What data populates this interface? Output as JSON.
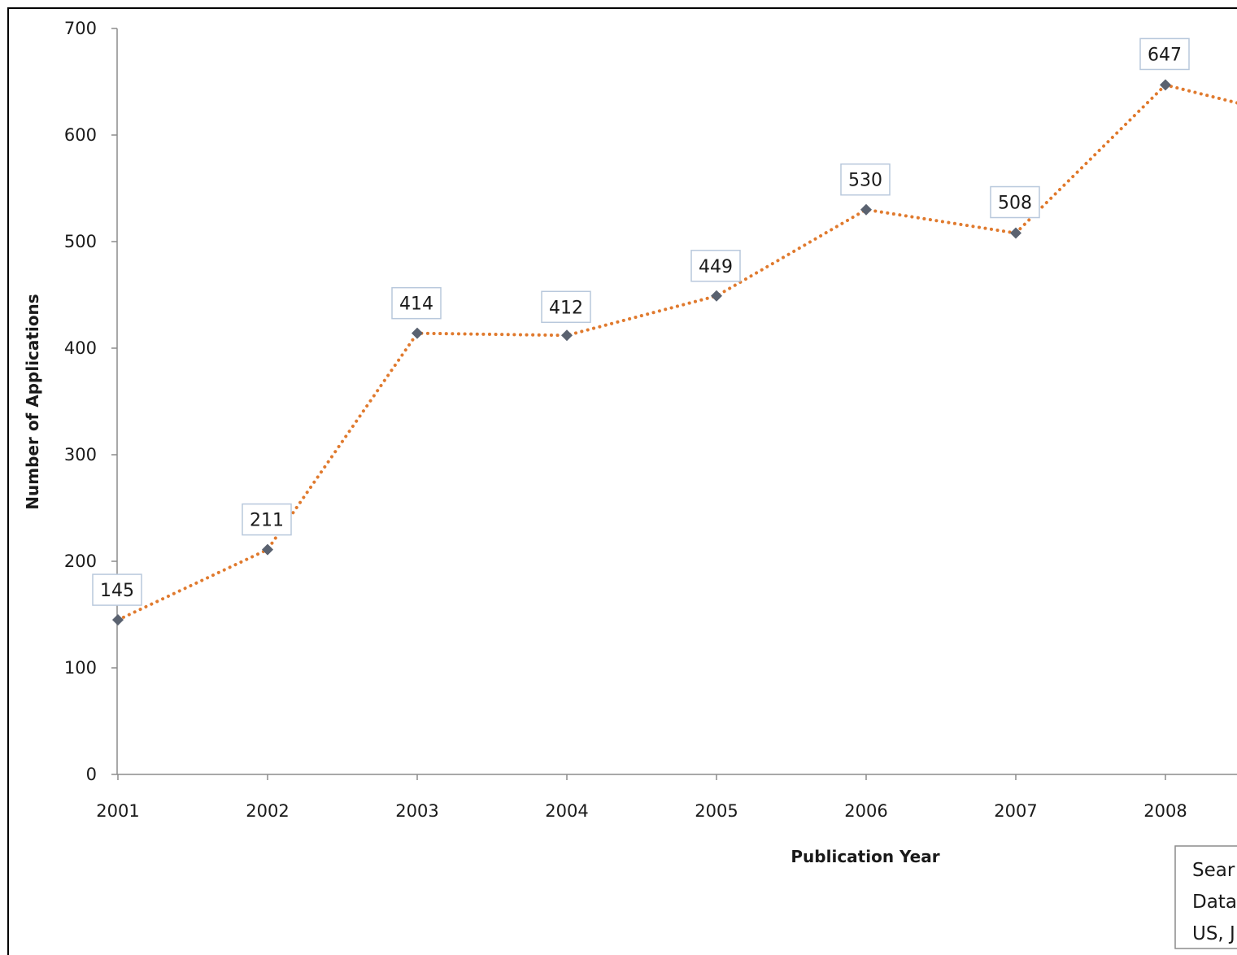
{
  "chart_data": {
    "type": "line",
    "title": "",
    "xlabel": "Publication Year",
    "ylabel": "Number of Applications",
    "ylim": [
      0,
      700
    ],
    "yticks": [
      0,
      100,
      200,
      300,
      400,
      500,
      600,
      700
    ],
    "grid": false,
    "legend": "none",
    "categories": [
      "2001",
      "2002",
      "2003",
      "2004",
      "2005",
      "2006",
      "2007",
      "2008"
    ],
    "values": [
      145,
      211,
      414,
      412,
      449,
      530,
      508,
      647
    ],
    "line_color": "#e07a2e",
    "marker_color": "#5a6270",
    "label_border_color": "#b8c8dc",
    "annotation_lines": [
      "Sear",
      "Data",
      "US, J"
    ]
  }
}
